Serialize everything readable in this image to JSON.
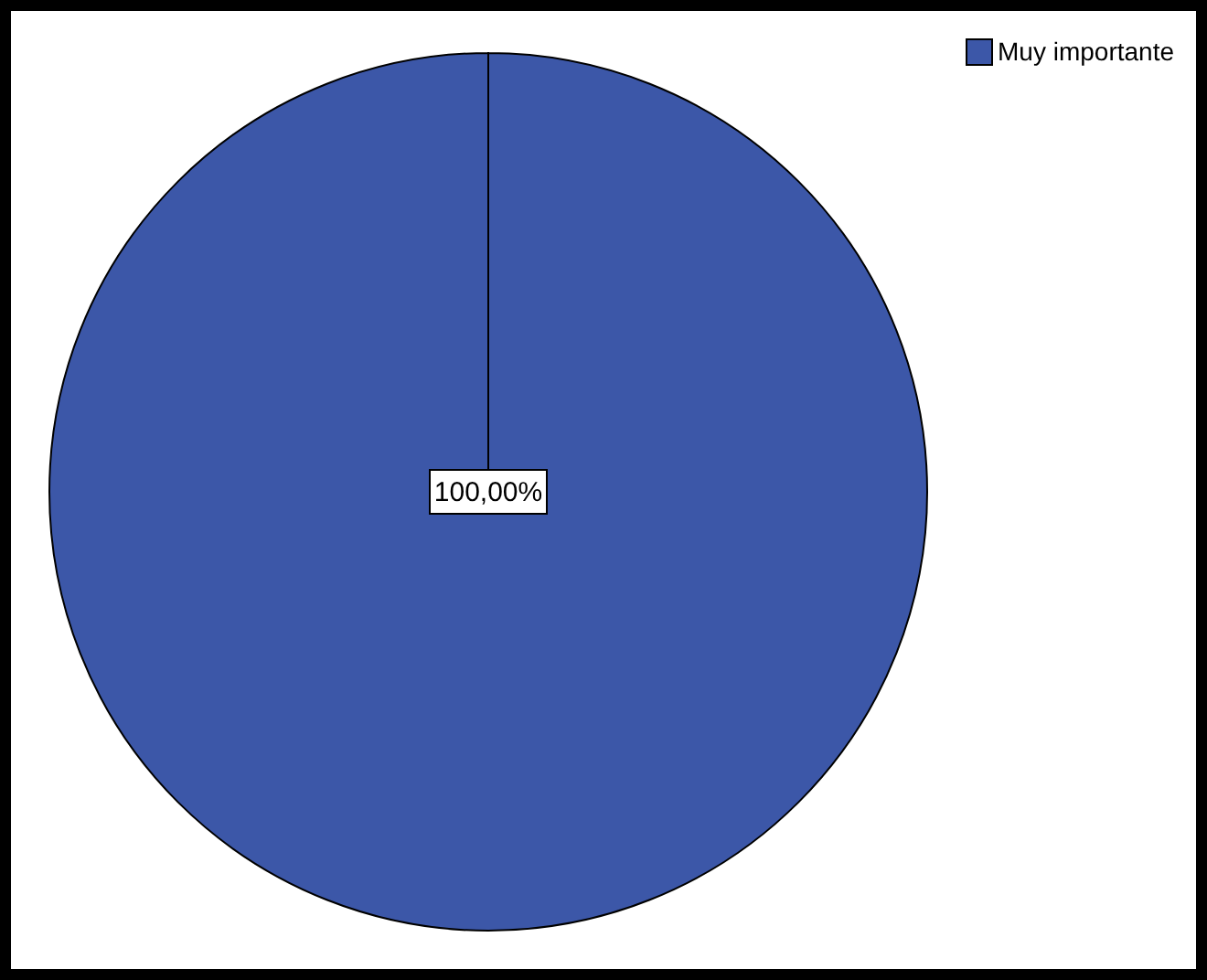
{
  "chart_data": {
    "type": "pie",
    "categories": [
      "Muy importante"
    ],
    "values": [
      100
    ],
    "colors": [
      "#3c57a8"
    ],
    "value_labels": [
      "100,00%"
    ],
    "legend": "top right"
  }
}
